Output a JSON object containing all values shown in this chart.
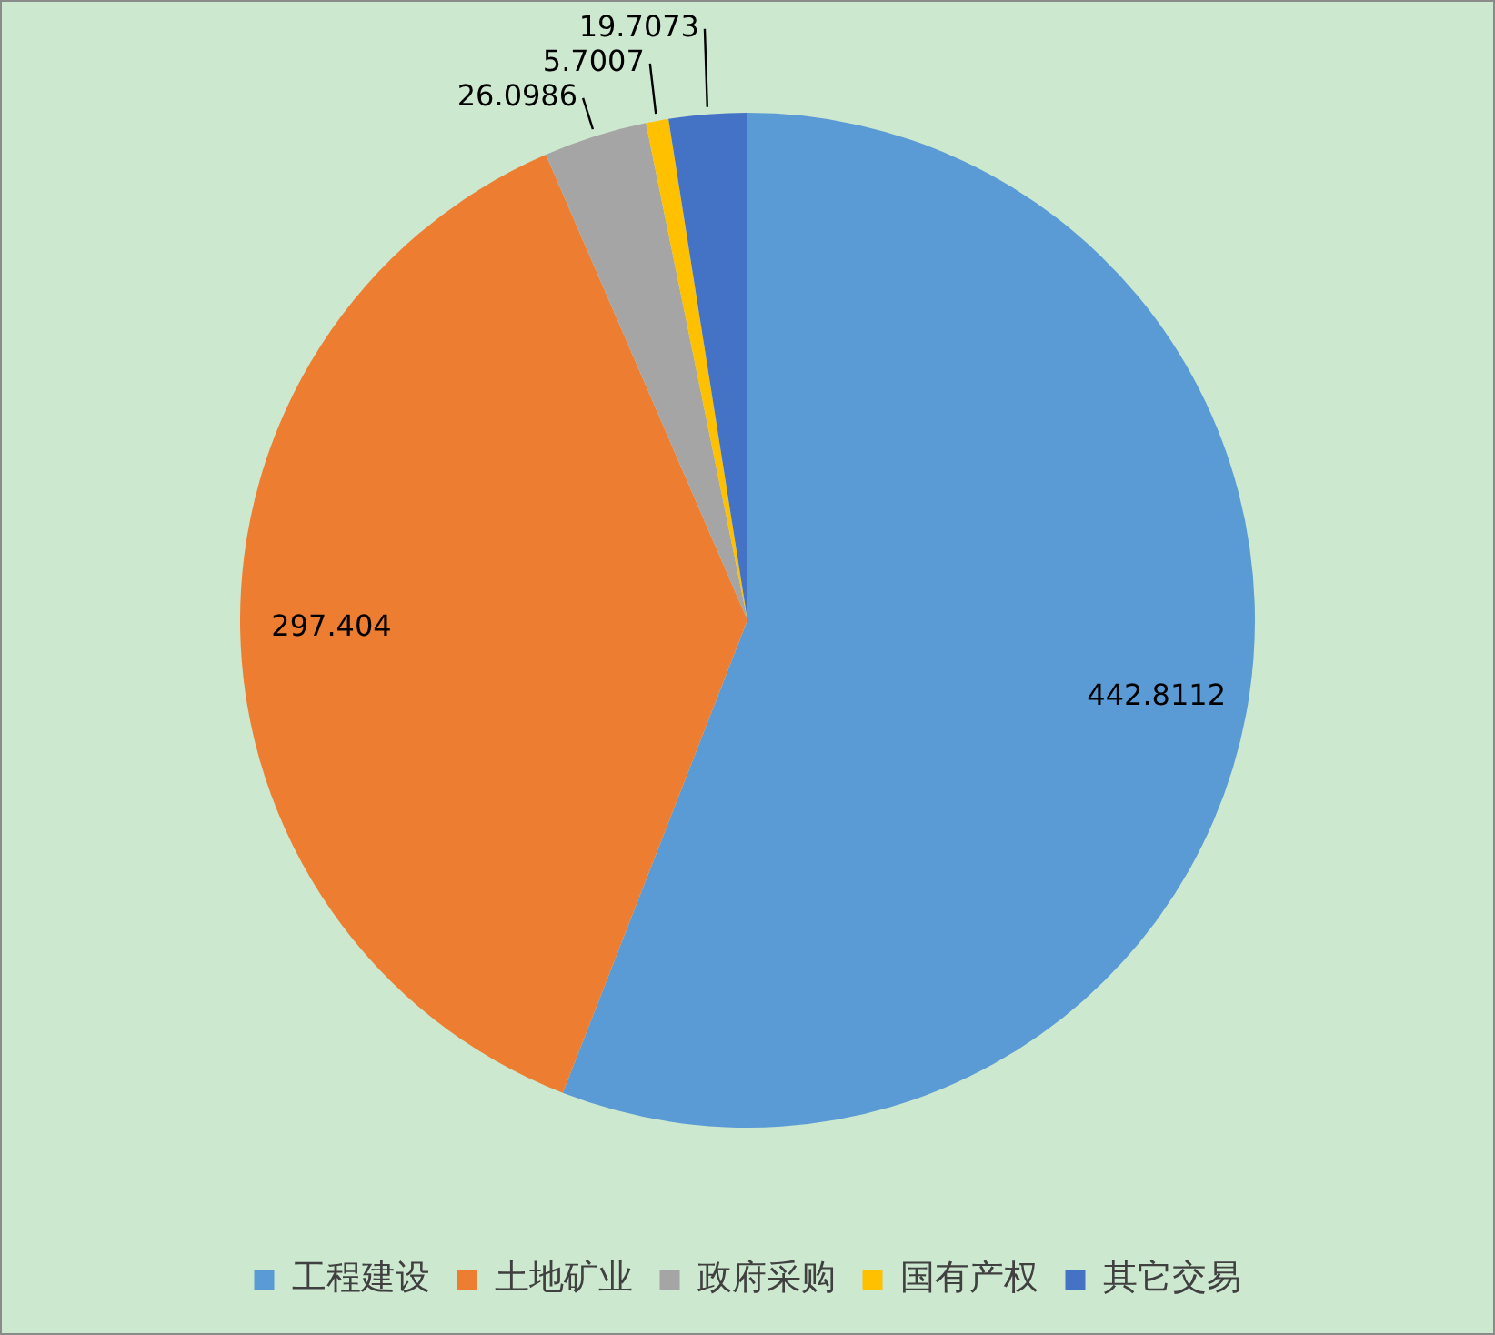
{
  "chart_data": {
    "type": "pie",
    "categories": [
      "工程建设",
      "土地矿业",
      "政府采购",
      "国有产权",
      "其它交易"
    ],
    "values": [
      442.8112,
      297.404,
      26.0986,
      5.7007,
      19.7073
    ],
    "colors": [
      "#5b9bd5",
      "#ed7d31",
      "#a5a5a5",
      "#ffc000",
      "#4472c4"
    ],
    "data_labels": true,
    "legend": "bottom"
  }
}
